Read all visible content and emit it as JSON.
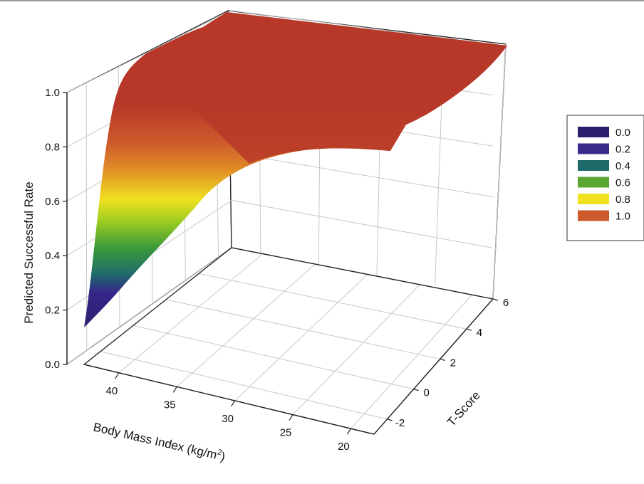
{
  "chart_data": {
    "type": "surface",
    "title": "",
    "zlabel": "Predicted Successful Rate",
    "xlabel_main": "Body Mass Index (kg/m",
    "xlabel_sup": "2",
    "xlabel_tail": ")",
    "ylabel": "T-Score",
    "zlim": [
      0.0,
      1.0
    ],
    "bmi_range": [
      18,
      43
    ],
    "tscore_range": [
      -3,
      6
    ],
    "z_ticks": [
      "0.0",
      "0.2",
      "0.4",
      "0.6",
      "0.8",
      "1.0"
    ],
    "bmi_ticks": [
      "40",
      "35",
      "30",
      "25",
      "20"
    ],
    "tscore_ticks": [
      "-2",
      "0",
      "2",
      "4",
      "6"
    ],
    "grid": true,
    "legend_position": "right",
    "legend": [
      {
        "label": "0.0",
        "color": "#2a1f6e"
      },
      {
        "label": "0.2",
        "color": "#3c2a8c"
      },
      {
        "label": "0.4",
        "color": "#1f6b6b"
      },
      {
        "label": "0.6",
        "color": "#5aa832"
      },
      {
        "label": "0.8",
        "color": "#f0e020"
      },
      {
        "label": "1.0",
        "color": "#cc5a2c"
      }
    ],
    "front_edge_bmi_43": [
      {
        "t": -3,
        "z": 0.15
      },
      {
        "t": -2,
        "z": 0.22
      },
      {
        "t": 0,
        "z": 0.31
      },
      {
        "t": 2,
        "z": 0.38
      },
      {
        "t": 4,
        "z": 0.46
      },
      {
        "t": 6,
        "z": 0.6
      }
    ],
    "front_edge_tscore_minus3": [
      {
        "bmi": 43,
        "z": 0.15
      },
      {
        "bmi": 40,
        "z": 0.55
      },
      {
        "bmi": 37,
        "z": 0.8
      },
      {
        "bmi": 34,
        "z": 0.93
      },
      {
        "bmi": 30,
        "z": 0.98
      },
      {
        "bmi": 25,
        "z": 1.0
      },
      {
        "bmi": 18,
        "z": 1.0
      }
    ]
  }
}
